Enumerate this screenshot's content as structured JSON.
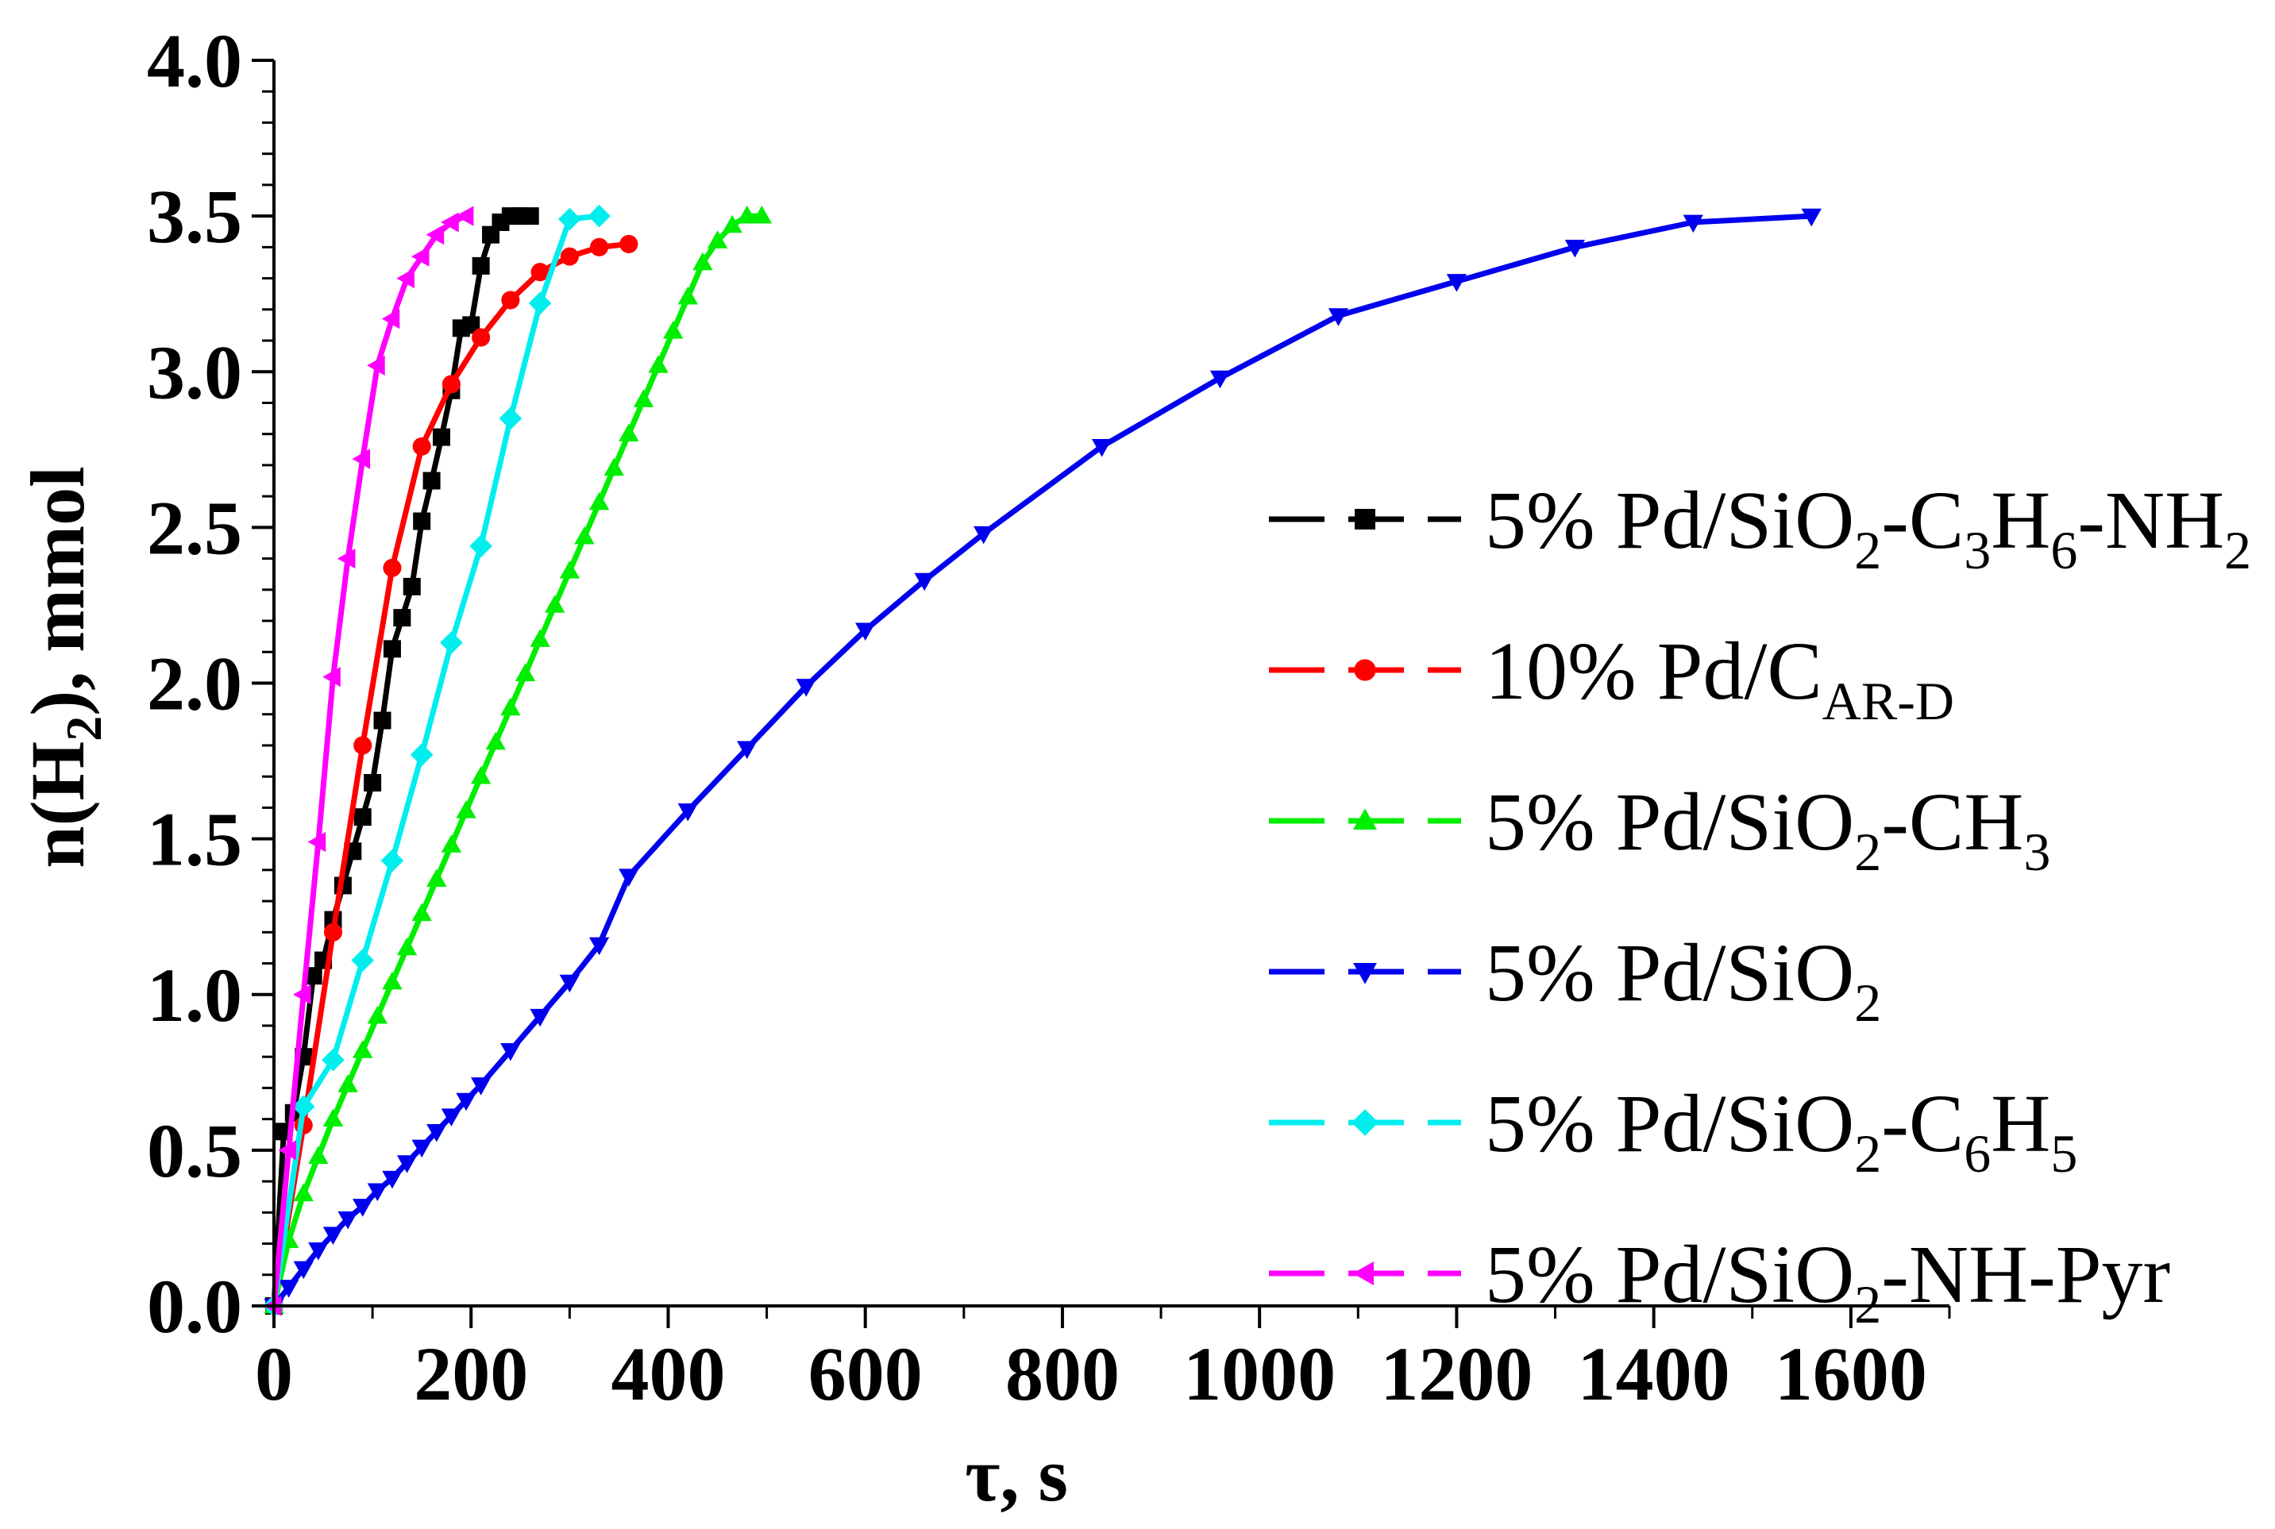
{
  "chart_data": {
    "type": "line",
    "title": "",
    "xlabel": "τ, s",
    "ylabel_parts": {
      "pre": "n(H",
      "sub": "2",
      "post": "), mmol"
    },
    "xlim": [
      0,
      1700
    ],
    "ylim": [
      0,
      4.0
    ],
    "x_ticks": [
      0,
      200,
      400,
      600,
      800,
      1000,
      1200,
      1400,
      1600
    ],
    "y_ticks": [
      0.0,
      0.5,
      1.0,
      1.5,
      2.0,
      2.5,
      3.0,
      3.5,
      4.0
    ],
    "x_tick_labels": [
      "0",
      "200",
      "400",
      "600",
      "800",
      "1000",
      "1200",
      "1400",
      "1600"
    ],
    "y_tick_labels": [
      "0.0",
      "0.5",
      "1.0",
      "1.5",
      "2.0",
      "2.5",
      "3.0",
      "3.5",
      "4.0"
    ],
    "grid": false,
    "legend_position": "right",
    "series": [
      {
        "name": "5% Pd/SiO2-C3H6-NH2",
        "legend_parts": [
          {
            "t": "5% Pd/SiO"
          },
          {
            "t": "2",
            "sub": true
          },
          {
            "t": "-C"
          },
          {
            "t": "3",
            "sub": true
          },
          {
            "t": "H"
          },
          {
            "t": "6",
            "sub": true
          },
          {
            "t": "-NH"
          },
          {
            "t": "2",
            "sub": true
          }
        ],
        "color": "#000000",
        "marker": "square",
        "x": [
          0,
          10,
          20,
          30,
          40,
          50,
          60,
          70,
          80,
          90,
          100,
          110,
          120,
          130,
          140,
          150,
          160,
          170,
          180,
          190,
          200,
          210,
          220,
          230,
          240,
          250,
          260
        ],
        "y": [
          0.0,
          0.56,
          0.62,
          0.8,
          1.06,
          1.11,
          1.24,
          1.35,
          1.46,
          1.57,
          1.68,
          1.88,
          2.11,
          2.21,
          2.31,
          2.52,
          2.65,
          2.79,
          2.94,
          3.14,
          3.15,
          3.34,
          3.44,
          3.48,
          3.5,
          3.5,
          3.5
        ]
      },
      {
        "name": "10% Pd/CAR-D",
        "legend_parts": [
          {
            "t": "10% Pd/C"
          },
          {
            "t": "AR-D",
            "sub": true
          }
        ],
        "color": "#ff0000",
        "marker": "circle",
        "x": [
          0,
          30,
          60,
          90,
          120,
          150,
          180,
          210,
          240,
          270,
          300,
          330,
          360
        ],
        "y": [
          0.0,
          0.58,
          1.2,
          1.8,
          2.37,
          2.76,
          2.96,
          3.11,
          3.23,
          3.32,
          3.37,
          3.4,
          3.41
        ]
      },
      {
        "name": "5% Pd/SiO2-CH3",
        "legend_parts": [
          {
            "t": "5% Pd/SiO"
          },
          {
            "t": "2",
            "sub": true
          },
          {
            "t": "-CH"
          },
          {
            "t": "3",
            "sub": true
          }
        ],
        "color": "#00ee00",
        "marker": "triangle-up",
        "x": [
          0,
          15,
          30,
          45,
          60,
          75,
          90,
          105,
          120,
          135,
          150,
          165,
          180,
          195,
          210,
          225,
          240,
          255,
          270,
          285,
          300,
          315,
          330,
          345,
          360,
          375,
          390,
          405,
          420,
          435,
          450,
          465,
          480,
          495
        ],
        "y": [
          0.0,
          0.21,
          0.36,
          0.48,
          0.6,
          0.71,
          0.82,
          0.93,
          1.04,
          1.15,
          1.26,
          1.37,
          1.48,
          1.59,
          1.7,
          1.81,
          1.92,
          2.03,
          2.14,
          2.25,
          2.36,
          2.47,
          2.58,
          2.69,
          2.8,
          2.91,
          3.02,
          3.13,
          3.24,
          3.35,
          3.42,
          3.47,
          3.5,
          3.5
        ]
      },
      {
        "name": "5% Pd/SiO2",
        "legend_parts": [
          {
            "t": "5% Pd/SiO"
          },
          {
            "t": "2",
            "sub": true
          }
        ],
        "color": "#0000ee",
        "marker": "triangle-down",
        "x": [
          0,
          15,
          30,
          45,
          60,
          75,
          90,
          105,
          120,
          135,
          150,
          165,
          180,
          195,
          210,
          240,
          270,
          300,
          330,
          360,
          420,
          480,
          540,
          600,
          660,
          720,
          840,
          960,
          1080,
          1200,
          1320,
          1440,
          1560
        ],
        "y": [
          0.0,
          0.06,
          0.12,
          0.18,
          0.23,
          0.28,
          0.32,
          0.37,
          0.41,
          0.46,
          0.51,
          0.56,
          0.61,
          0.66,
          0.71,
          0.82,
          0.93,
          1.04,
          1.16,
          1.38,
          1.59,
          1.79,
          1.99,
          2.17,
          2.33,
          2.48,
          2.76,
          2.98,
          3.18,
          3.29,
          3.4,
          3.48,
          3.5
        ]
      },
      {
        "name": "5% Pd/SiO2-C6H5",
        "legend_parts": [
          {
            "t": "5% Pd/SiO"
          },
          {
            "t": "2",
            "sub": true
          },
          {
            "t": "-C"
          },
          {
            "t": "6",
            "sub": true
          },
          {
            "t": "H"
          },
          {
            "t": "5",
            "sub": true
          }
        ],
        "color": "#00eeee",
        "marker": "diamond",
        "x": [
          0,
          30,
          60,
          90,
          120,
          150,
          180,
          210,
          240,
          270,
          300,
          330
        ],
        "y": [
          0.0,
          0.64,
          0.79,
          1.11,
          1.43,
          1.77,
          2.13,
          2.44,
          2.85,
          3.22,
          3.49,
          3.5
        ]
      },
      {
        "name": "5% Pd/SiO2-NH-Pyr",
        "legend_parts": [
          {
            "t": "5% Pd/SiO"
          },
          {
            "t": "2",
            "sub": true
          },
          {
            "t": "-NH-Pyr"
          }
        ],
        "color": "#ff00ff",
        "marker": "triangle-left",
        "x": [
          0,
          15,
          30,
          45,
          60,
          75,
          90,
          105,
          120,
          135,
          150,
          165,
          180,
          195
        ],
        "y": [
          0.0,
          0.5,
          1.0,
          1.49,
          2.02,
          2.4,
          2.72,
          3.02,
          3.17,
          3.3,
          3.37,
          3.44,
          3.48,
          3.5
        ]
      }
    ]
  }
}
